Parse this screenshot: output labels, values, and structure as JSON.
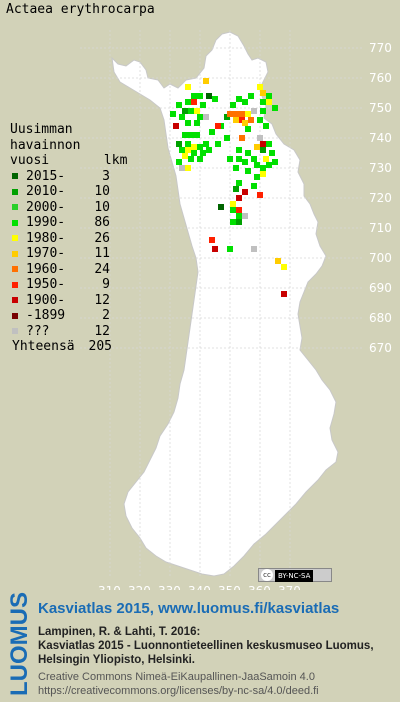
{
  "species": "Actaea erythrocarpa",
  "legend": {
    "header": [
      "Uusimman",
      "havainnon",
      "vuosi       lkm"
    ],
    "rows": [
      {
        "label": "2015-",
        "count": "3",
        "color": "#006400"
      },
      {
        "label": "2010-",
        "count": "10",
        "color": "#00a000"
      },
      {
        "label": "2000-",
        "count": "10",
        "color": "#28d028"
      },
      {
        "label": "1990-",
        "count": "86",
        "color": "#00e000"
      },
      {
        "label": "1980-",
        "count": "26",
        "color": "#ffff00"
      },
      {
        "label": "1970-",
        "count": "11",
        "color": "#ffcc00"
      },
      {
        "label": "1960-",
        "count": "24",
        "color": "#ff7000"
      },
      {
        "label": "1950-",
        "count": "9",
        "color": "#ff2000"
      },
      {
        "label": "1900-",
        "count": "12",
        "color": "#c80000"
      },
      {
        "label": "-1899",
        "count": "2",
        "color": "#780000"
      },
      {
        "label": "???",
        "count": "12",
        "color": "#c0c0c0"
      }
    ],
    "total_label": "Yhteensä",
    "total_count": "205"
  },
  "axes": {
    "x_ticks": [
      "310",
      "320",
      "330",
      "340",
      "350",
      "360",
      "370"
    ],
    "y_ticks": [
      "770",
      "760",
      "750",
      "740",
      "730",
      "720",
      "710",
      "700",
      "690",
      "680",
      "670"
    ]
  },
  "observations": [
    {
      "e": 336,
      "n": 757,
      "c": "#ffff00"
    },
    {
      "e": 342,
      "n": 759,
      "c": "#ffcc00"
    },
    {
      "e": 338,
      "n": 754,
      "c": "#00e000"
    },
    {
      "e": 340,
      "n": 754,
      "c": "#00e000"
    },
    {
      "e": 343,
      "n": 754,
      "c": "#006400"
    },
    {
      "e": 345,
      "n": 753,
      "c": "#00e000"
    },
    {
      "e": 336,
      "n": 752,
      "c": "#00e000"
    },
    {
      "e": 338,
      "n": 752,
      "c": "#ff2000"
    },
    {
      "e": 341,
      "n": 751,
      "c": "#00e000"
    },
    {
      "e": 333,
      "n": 751,
      "c": "#00e000"
    },
    {
      "e": 335,
      "n": 749,
      "c": "#00a000"
    },
    {
      "e": 337,
      "n": 749,
      "c": "#00e000"
    },
    {
      "e": 339,
      "n": 749,
      "c": "#ffff00"
    },
    {
      "e": 334,
      "n": 747,
      "c": "#00e000"
    },
    {
      "e": 340,
      "n": 747,
      "c": "#00e000"
    },
    {
      "e": 342,
      "n": 747,
      "c": "#c0c0c0"
    },
    {
      "e": 336,
      "n": 745,
      "c": "#00e000"
    },
    {
      "e": 339,
      "n": 745,
      "c": "#00e000"
    },
    {
      "e": 335,
      "n": 741,
      "c": "#00e000"
    },
    {
      "e": 337,
      "n": 741,
      "c": "#00e000"
    },
    {
      "e": 339,
      "n": 741,
      "c": "#00e000"
    },
    {
      "e": 344,
      "n": 742,
      "c": "#00e000"
    },
    {
      "e": 333,
      "n": 738,
      "c": "#00a000"
    },
    {
      "e": 336,
      "n": 738,
      "c": "#00e000"
    },
    {
      "e": 338,
      "n": 737,
      "c": "#ffff00"
    },
    {
      "e": 340,
      "n": 737,
      "c": "#00e000"
    },
    {
      "e": 342,
      "n": 738,
      "c": "#00e000"
    },
    {
      "e": 346,
      "n": 738,
      "c": "#00e000"
    },
    {
      "e": 334,
      "n": 736,
      "c": "#00e000"
    },
    {
      "e": 336,
      "n": 736,
      "c": "#ffff00"
    },
    {
      "e": 338,
      "n": 735,
      "c": "#00e000"
    },
    {
      "e": 341,
      "n": 735,
      "c": "#00e000"
    },
    {
      "e": 335,
      "n": 734,
      "c": "#ffff00"
    },
    {
      "e": 337,
      "n": 733,
      "c": "#00e000"
    },
    {
      "e": 340,
      "n": 733,
      "c": "#00e000"
    },
    {
      "e": 333,
      "n": 732,
      "c": "#00e000"
    },
    {
      "e": 334,
      "n": 730,
      "c": "#c0c0c0"
    },
    {
      "e": 336,
      "n": 730,
      "c": "#ffff00"
    },
    {
      "e": 347,
      "n": 744,
      "c": "#00e000"
    },
    {
      "e": 349,
      "n": 747,
      "c": "#00a000"
    },
    {
      "e": 351,
      "n": 751,
      "c": "#00e000"
    },
    {
      "e": 353,
      "n": 753,
      "c": "#00e000"
    },
    {
      "e": 355,
      "n": 752,
      "c": "#00e000"
    },
    {
      "e": 357,
      "n": 754,
      "c": "#00e000"
    },
    {
      "e": 360,
      "n": 757,
      "c": "#ffff00"
    },
    {
      "e": 361,
      "n": 755,
      "c": "#ffcc00"
    },
    {
      "e": 363,
      "n": 754,
      "c": "#00e000"
    },
    {
      "e": 361,
      "n": 752,
      "c": "#00e000"
    },
    {
      "e": 363,
      "n": 752,
      "c": "#ffff00"
    },
    {
      "e": 365,
      "n": 750,
      "c": "#00e000"
    },
    {
      "e": 361,
      "n": 749,
      "c": "#00e000"
    },
    {
      "e": 358,
      "n": 749,
      "c": "#c0c0c0"
    },
    {
      "e": 350,
      "n": 748,
      "c": "#ff7000"
    },
    {
      "e": 352,
      "n": 748,
      "c": "#ff7000"
    },
    {
      "e": 354,
      "n": 748,
      "c": "#ff7000"
    },
    {
      "e": 356,
      "n": 748,
      "c": "#ffff00"
    },
    {
      "e": 352,
      "n": 746,
      "c": "#ffcc00"
    },
    {
      "e": 354,
      "n": 746,
      "c": "#ff2000"
    },
    {
      "e": 355,
      "n": 745,
      "c": "#ffcc00"
    },
    {
      "e": 357,
      "n": 746,
      "c": "#ff7000"
    },
    {
      "e": 360,
      "n": 746,
      "c": "#00e000"
    },
    {
      "e": 356,
      "n": 743,
      "c": "#00e000"
    },
    {
      "e": 362,
      "n": 744,
      "c": "#00e000"
    },
    {
      "e": 354,
      "n": 740,
      "c": "#ff7000"
    },
    {
      "e": 360,
      "n": 740,
      "c": "#c0c0c0"
    },
    {
      "e": 361,
      "n": 738,
      "c": "#c80000"
    },
    {
      "e": 363,
      "n": 738,
      "c": "#00e000"
    },
    {
      "e": 359,
      "n": 737,
      "c": "#ffcc00"
    },
    {
      "e": 361,
      "n": 736,
      "c": "#00a000"
    },
    {
      "e": 364,
      "n": 735,
      "c": "#00e000"
    },
    {
      "e": 362,
      "n": 733,
      "c": "#ffff00"
    },
    {
      "e": 365,
      "n": 732,
      "c": "#00e000"
    },
    {
      "e": 363,
      "n": 731,
      "c": "#00e000"
    },
    {
      "e": 361,
      "n": 730,
      "c": "#00e000"
    },
    {
      "e": 359,
      "n": 731,
      "c": "#00e000"
    },
    {
      "e": 361,
      "n": 728,
      "c": "#ffff00"
    },
    {
      "e": 359,
      "n": 727,
      "c": "#00e000"
    },
    {
      "e": 356,
      "n": 735,
      "c": "#00e000"
    },
    {
      "e": 353,
      "n": 736,
      "c": "#00e000"
    },
    {
      "e": 350,
      "n": 733,
      "c": "#00e000"
    },
    {
      "e": 353,
      "n": 733,
      "c": "#00e000"
    },
    {
      "e": 355,
      "n": 732,
      "c": "#00e000"
    },
    {
      "e": 358,
      "n": 733,
      "c": "#00e000"
    },
    {
      "e": 352,
      "n": 730,
      "c": "#00e000"
    },
    {
      "e": 356,
      "n": 729,
      "c": "#00e000"
    },
    {
      "e": 353,
      "n": 725,
      "c": "#00e000"
    },
    {
      "e": 355,
      "n": 722,
      "c": "#c80000"
    },
    {
      "e": 358,
      "n": 724,
      "c": "#00e000"
    },
    {
      "e": 360,
      "n": 721,
      "c": "#ff2000"
    },
    {
      "e": 352,
      "n": 723,
      "c": "#00a000"
    },
    {
      "e": 353,
      "n": 720,
      "c": "#c80000"
    },
    {
      "e": 351,
      "n": 718,
      "c": "#ffff00"
    },
    {
      "e": 351,
      "n": 716,
      "c": "#00e000"
    },
    {
      "e": 353,
      "n": 716,
      "c": "#ff2000"
    },
    {
      "e": 353,
      "n": 714,
      "c": "#00e000"
    },
    {
      "e": 355,
      "n": 714,
      "c": "#c0c0c0"
    },
    {
      "e": 353,
      "n": 712,
      "c": "#00a000"
    },
    {
      "e": 351,
      "n": 712,
      "c": "#00e000"
    },
    {
      "e": 347,
      "n": 717,
      "c": "#006400"
    },
    {
      "e": 344,
      "n": 706,
      "c": "#ff2000"
    },
    {
      "e": 345,
      "n": 703,
      "c": "#c80000"
    },
    {
      "e": 350,
      "n": 703,
      "c": "#00e000"
    },
    {
      "e": 358,
      "n": 703,
      "c": "#c0c0c0"
    },
    {
      "e": 366,
      "n": 699,
      "c": "#ffcc00"
    },
    {
      "e": 368,
      "n": 697,
      "c": "#ffff00"
    },
    {
      "e": 368,
      "n": 688,
      "c": "#c80000"
    },
    {
      "e": 346,
      "n": 744,
      "c": "#ff2000"
    },
    {
      "e": 343,
      "n": 736,
      "c": "#00e000"
    },
    {
      "e": 349,
      "n": 740,
      "c": "#00e000"
    },
    {
      "e": 331,
      "n": 748,
      "c": "#00e000"
    },
    {
      "e": 332,
      "n": 744,
      "c": "#c80000"
    }
  ]
}
